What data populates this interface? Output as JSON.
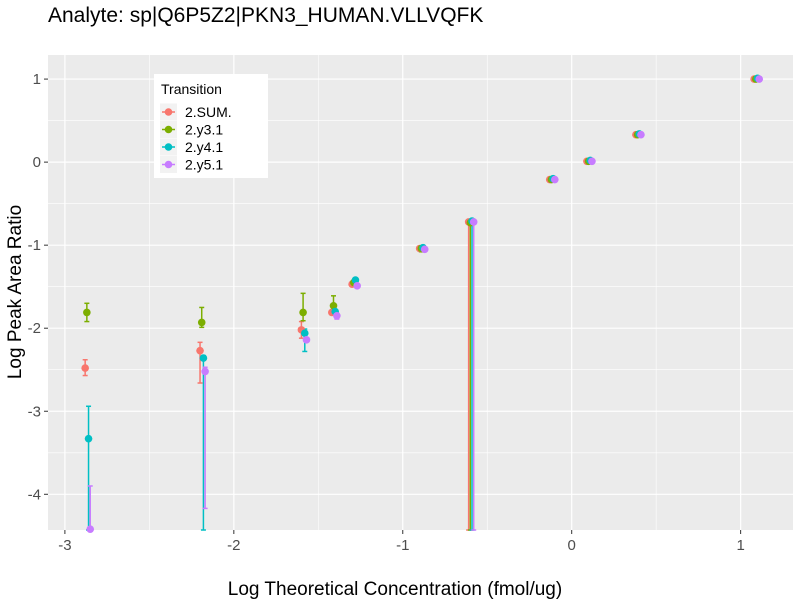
{
  "chart_data": {
    "type": "scatter",
    "title": "Analyte: sp|Q6P5Z2|PKN3_HUMAN.VLLVQFK",
    "xlabel": "Log Theoretical Concentration (fmol/ug)",
    "ylabel": "Log Peak Area Ratio",
    "xlim": [
      -3.1,
      1.31
    ],
    "ylim": [
      -4.43,
      1.29
    ],
    "x_ticks": [
      -3,
      -2,
      -1,
      0,
      1
    ],
    "x_tick_labels": [
      "-3",
      "-2",
      "-1",
      "0",
      "1"
    ],
    "y_ticks": [
      1,
      0,
      -1,
      -2,
      -3,
      -4
    ],
    "y_tick_labels": [
      "1",
      "0",
      "-1",
      "-2",
      "-3",
      "-4"
    ],
    "grid": true,
    "legend": {
      "title": "Transition",
      "placement": "top-left-inside"
    },
    "series": [
      {
        "name": "2.SUM.",
        "color": "#F8766D",
        "points": [
          {
            "x": -2.88,
            "y": -2.48,
            "ymin": -2.57,
            "ymax": -2.38
          },
          {
            "x": -2.2,
            "y": -2.27,
            "ymin": -2.66,
            "ymax": -2.17
          },
          {
            "x": -1.6,
            "y": -2.02,
            "ymin": -2.12,
            "ymax": -1.92
          },
          {
            "x": -1.42,
            "y": -1.81,
            "ymin": -1.83,
            "ymax": -1.79
          },
          {
            "x": -1.3,
            "y": -1.47,
            "ymin": -1.49,
            "ymax": -1.45
          },
          {
            "x": -0.9,
            "y": -1.04,
            "ymin": -1.06,
            "ymax": -1.02
          },
          {
            "x": -0.61,
            "y": -0.72,
            "ymin": -4.43,
            "ymax": -0.7
          },
          {
            "x": -0.13,
            "y": -0.21,
            "ymin": -0.22,
            "ymax": -0.2
          },
          {
            "x": 0.09,
            "y": 0.01,
            "ymin": 0.0,
            "ymax": 0.02
          },
          {
            "x": 0.38,
            "y": 0.33,
            "ymin": 0.32,
            "ymax": 0.34
          },
          {
            "x": 1.08,
            "y": 1.0,
            "ymin": 0.99,
            "ymax": 1.01
          }
        ]
      },
      {
        "name": "2.y3.1",
        "color": "#7CAE00",
        "points": [
          {
            "x": -2.87,
            "y": -1.81,
            "ymin": -1.92,
            "ymax": -1.7
          },
          {
            "x": -2.19,
            "y": -1.93,
            "ymin": -1.99,
            "ymax": -1.75
          },
          {
            "x": -1.59,
            "y": -1.81,
            "ymin": -1.91,
            "ymax": -1.58
          },
          {
            "x": -1.41,
            "y": -1.73,
            "ymin": -1.79,
            "ymax": -1.61
          },
          {
            "x": -1.29,
            "y": -1.45,
            "ymin": -1.48,
            "ymax": -1.43
          },
          {
            "x": -0.89,
            "y": -1.04,
            "ymin": -1.08,
            "ymax": -1.01
          },
          {
            "x": -0.6,
            "y": -0.73,
            "ymin": -4.43,
            "ymax": -0.71
          },
          {
            "x": -0.12,
            "y": -0.21,
            "ymin": -0.23,
            "ymax": -0.19
          },
          {
            "x": 0.1,
            "y": 0.01,
            "ymin": 0.0,
            "ymax": 0.02
          },
          {
            "x": 0.39,
            "y": 0.33,
            "ymin": 0.32,
            "ymax": 0.34
          },
          {
            "x": 1.09,
            "y": 1.0,
            "ymin": 0.99,
            "ymax": 1.01
          }
        ]
      },
      {
        "name": "2.y4.1",
        "color": "#00BFC4",
        "points": [
          {
            "x": -2.86,
            "y": -3.33,
            "ymin": -4.43,
            "ymax": -2.94
          },
          {
            "x": -2.18,
            "y": -2.36,
            "ymin": -4.43,
            "ymax": -2.33
          },
          {
            "x": -1.58,
            "y": -2.06,
            "ymin": -2.28,
            "ymax": -2.01
          },
          {
            "x": -1.4,
            "y": -1.8,
            "ymin": -1.83,
            "ymax": -1.78
          },
          {
            "x": -1.28,
            "y": -1.42,
            "ymin": -1.44,
            "ymax": -1.4
          },
          {
            "x": -0.88,
            "y": -1.03,
            "ymin": -1.05,
            "ymax": -1.01
          },
          {
            "x": -0.59,
            "y": -0.71,
            "ymin": -4.43,
            "ymax": -0.69
          },
          {
            "x": -0.11,
            "y": -0.2,
            "ymin": -0.21,
            "ymax": -0.19
          },
          {
            "x": 0.11,
            "y": 0.02,
            "ymin": 0.01,
            "ymax": 0.03
          },
          {
            "x": 0.4,
            "y": 0.34,
            "ymin": 0.33,
            "ymax": 0.35
          },
          {
            "x": 1.1,
            "y": 1.01,
            "ymin": 1.0,
            "ymax": 1.02
          }
        ]
      },
      {
        "name": "2.y5.1",
        "color": "#C77CFF",
        "points": [
          {
            "x": -2.85,
            "y": -4.42,
            "ymin": -4.43,
            "ymax": -3.9
          },
          {
            "x": -2.17,
            "y": -2.52,
            "ymin": -4.17,
            "ymax": -2.47
          },
          {
            "x": -1.57,
            "y": -2.14,
            "ymin": -2.16,
            "ymax": -2.12
          },
          {
            "x": -1.39,
            "y": -1.85,
            "ymin": -1.89,
            "ymax": -1.82
          },
          {
            "x": -1.27,
            "y": -1.49,
            "ymin": -1.51,
            "ymax": -1.47
          },
          {
            "x": -0.87,
            "y": -1.05,
            "ymin": -1.06,
            "ymax": -1.04
          },
          {
            "x": -0.58,
            "y": -0.72,
            "ymin": -4.43,
            "ymax": -0.7
          },
          {
            "x": -0.1,
            "y": -0.21,
            "ymin": -0.22,
            "ymax": -0.2
          },
          {
            "x": 0.12,
            "y": 0.01,
            "ymin": 0.0,
            "ymax": 0.02
          },
          {
            "x": 0.41,
            "y": 0.33,
            "ymin": 0.32,
            "ymax": 0.34
          },
          {
            "x": 1.11,
            "y": 1.0,
            "ymin": 0.99,
            "ymax": 1.01
          }
        ]
      }
    ]
  },
  "colors": {
    "panel_background": "#EBEBEB",
    "grid": "#FFFFFF",
    "tick_text": "#4D4D4D"
  }
}
